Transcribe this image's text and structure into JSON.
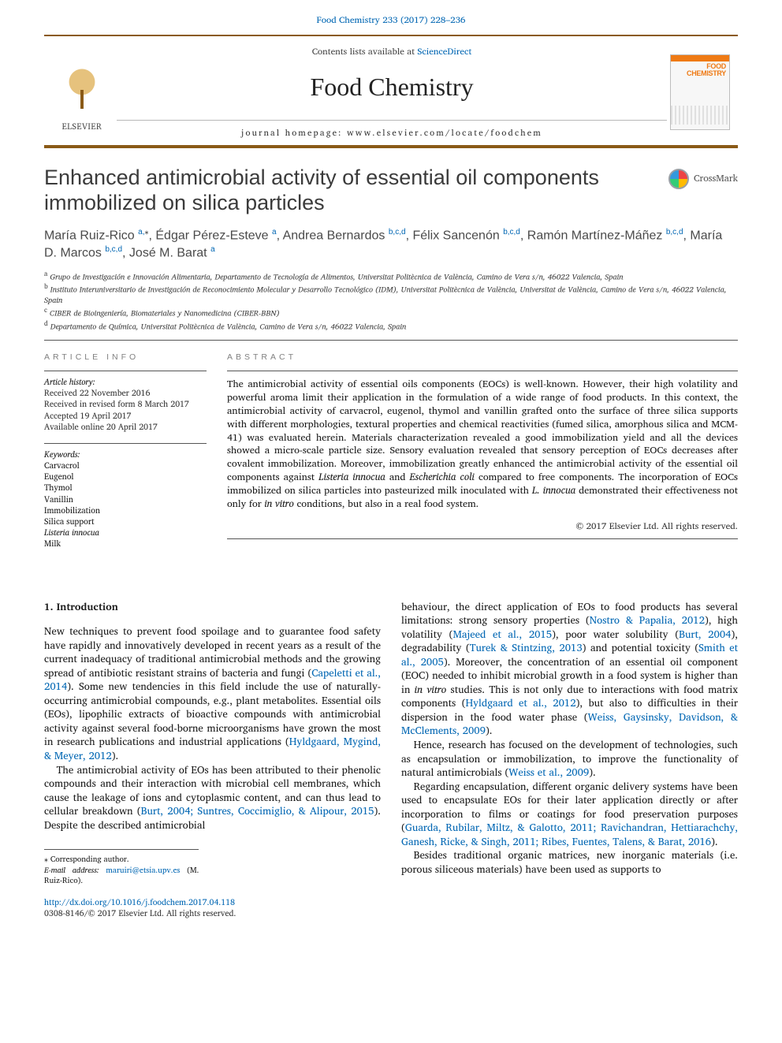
{
  "header": {
    "citation": "Food Chemistry 233 (2017) 228–236",
    "contents": "Contents lists available at",
    "contents_link": "ScienceDirect",
    "journal": "Food Chemistry",
    "homepage_label": "journal homepage:",
    "homepage_url": "www.elsevier.com/locate/foodchem",
    "publisher": "ELSEVIER",
    "cover_text": "FOOD CHEMISTRY"
  },
  "crossmark": "CrossMark",
  "title": "Enhanced antimicrobial activity of essential oil components immobilized on silica particles",
  "authors_html": "María Ruiz-Rico <sup>a,</sup><sup class='star'>⁎</sup>, Édgar Pérez-Esteve <sup>a</sup>, Andrea Bernardos <sup>b,c,d</sup>, Félix Sancenón <sup>b,c,d</sup>, Ramón Martínez-Máñez <sup>b,c,d</sup>, María D. Marcos <sup>b,c,d</sup>, José M. Barat <sup>a</sup>",
  "affiliations": {
    "a": "Grupo de Investigación e Innovación Alimentaria, Departamento de Tecnología de Alimentos, Universitat Politècnica de València, Camino de Vera s/n, 46022 Valencia, Spain",
    "b": "Instituto Interuniversitario de Investigación de Reconocimiento Molecular y Desarrollo Tecnológico (IDM), Universitat Politècnica de València, Universitat de València, Camino de Vera s/n, 46022 Valencia, Spain",
    "c": "CIBER de Bioingeniería, Biomateriales y Nanomedicina (CIBER-BBN)",
    "d": "Departamento de Química, Universitat Politècnica de València, Camino de Vera s/n, 46022 Valencia, Spain"
  },
  "info": {
    "heading": "ARTICLE INFO",
    "history_label": "Article history:",
    "history": [
      "Received 22 November 2016",
      "Received in revised form 8 March 2017",
      "Accepted 19 April 2017",
      "Available online 20 April 2017"
    ],
    "keywords_label": "Keywords:",
    "keywords": [
      "Carvacrol",
      "Eugenol",
      "Thymol",
      "Vanillin",
      "Immobilization",
      "Silica support",
      "Listeria innocua",
      "Milk"
    ]
  },
  "abstract": {
    "heading": "ABSTRACT",
    "text": "The antimicrobial activity of essential oils components (EOCs) is well-known. However, their high volatility and powerful aroma limit their application in the formulation of a wide range of food products. In this context, the antimicrobial activity of carvacrol, eugenol, thymol and vanillin grafted onto the surface of three silica supports with different morphologies, textural properties and chemical reactivities (fumed silica, amorphous silica and MCM-41) was evaluated herein. Materials characterization revealed a good immobilization yield and all the devices showed a micro-scale particle size. Sensory evaluation revealed that sensory perception of EOCs decreases after covalent immobilization. Moreover, immobilization greatly enhanced the antimicrobial activity of the essential oil components against Listeria innocua and Escherichia coli compared to free components. The incorporation of EOCs immobilized on silica particles into pasteurized milk inoculated with L. innocua demonstrated their effectiveness not only for in vitro conditions, but also in a real food system.",
    "copyright": "© 2017 Elsevier Ltd. All rights reserved."
  },
  "section1": {
    "heading": "1. Introduction",
    "col_left": [
      "New techniques to prevent food spoilage and to guarantee food safety have rapidly and innovatively developed in recent years as a result of the current inadequacy of traditional antimicrobial methods and the growing spread of antibiotic resistant strains of bacteria and fungi (<a class='link' href='#'>Capeletti et al., 2014</a>). Some new tendencies in this field include the use of naturally-occurring antimicrobial compounds, e.g., plant metabolites. Essential oils (EOs), lipophilic extracts of bioactive compounds with antimicrobial activity against several food-borne microorganisms have grown the most in research publications and industrial applications (<a class='link' href='#'>Hyldgaard, Mygind, & Meyer, 2012</a>).",
      "The antimicrobial activity of EOs has been attributed to their phenolic compounds and their interaction with microbial cell membranes, which cause the leakage of ions and cytoplasmic content, and can thus lead to cellular breakdown (<a class='link' href='#'>Burt, 2004; Suntres, Coccimiglio, & Alipour, 2015</a>). Despite the described antimicrobial"
    ],
    "col_right": [
      "behaviour, the direct application of EOs to food products has several limitations: strong sensory properties (<a class='link' href='#'>Nostro & Papalia, 2012</a>), high volatility (<a class='link' href='#'>Majeed et al., 2015</a>), poor water solubility (<a class='link' href='#'>Burt, 2004</a>), degradability (<a class='link' href='#'>Turek & Stintzing, 2013</a>) and potential toxicity (<a class='link' href='#'>Smith et al., 2005</a>). Moreover, the concentration of an essential oil component (EOC) needed to inhibit microbial growth in a food system is higher than in <em>in vitro</em> studies. This is not only due to interactions with food matrix components (<a class='link' href='#'>Hyldgaard et al., 2012</a>), but also to difficulties in their dispersion in the food water phase (<a class='link' href='#'>Weiss, Gaysinsky, Davidson, & McClements, 2009</a>).",
      "Hence, research has focused on the development of technologies, such as encapsulation or immobilization, to improve the functionality of natural antimicrobials (<a class='link' href='#'>Weiss et al., 2009</a>).",
      "Regarding encapsulation, different organic delivery systems have been used to encapsulate EOs for their later application directly or after incorporation to films or coatings for food preservation purposes (<a class='link' href='#'>Guarda, Rubilar, Miltz, & Galotto, 2011; Ravichandran, Hettiarachchy, Ganesh, Ricke, & Singh, 2011; Ribes, Fuentes, Talens, & Barat, 2016</a>).",
      "Besides traditional organic matrices, new inorganic materials (i.e. porous siliceous materials) have been used as supports to"
    ]
  },
  "footer": {
    "corresponding": "⁎ Corresponding author.",
    "email_label": "E-mail address:",
    "email": "maruiri@etsia.upv.es",
    "email_person": "(M. Ruiz-Rico).",
    "doi": "http://dx.doi.org/10.1016/j.foodchem.2017.04.118",
    "issn": "0308-8146/© 2017 Elsevier Ltd. All rights reserved."
  },
  "colors": {
    "brand_orange": "#ef7a14",
    "rule_brown": "#8a5a17",
    "link_blue": "#0066b3"
  }
}
